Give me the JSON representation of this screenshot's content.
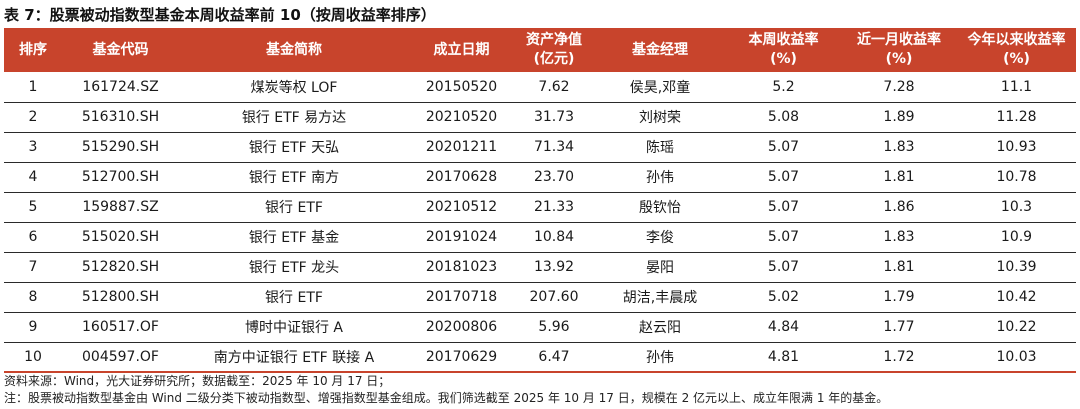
{
  "title": "表 7：股票被动指数型基金本周收益率前 10（按周收益率排序）",
  "table": {
    "headers": [
      [
        "排序"
      ],
      [
        "基金代码"
      ],
      [
        "基金简称"
      ],
      [
        "成立日期"
      ],
      [
        "资产净值",
        "(亿元)"
      ],
      [
        "基金经理"
      ],
      [
        "本周收益率",
        "(%)"
      ],
      [
        "近一月收益率",
        "(%)"
      ],
      [
        "今年以来收益率",
        "(%)"
      ]
    ],
    "rows": [
      [
        "1",
        "161724.SZ",
        "煤炭等权 LOF",
        "20150520",
        "7.62",
        "侯昊,邓童",
        "5.2",
        "7.28",
        "11.1"
      ],
      [
        "2",
        "516310.SH",
        "银行 ETF 易方达",
        "20210520",
        "31.73",
        "刘树荣",
        "5.08",
        "1.89",
        "11.28"
      ],
      [
        "3",
        "515290.SH",
        "银行 ETF 天弘",
        "20201211",
        "71.34",
        "陈瑶",
        "5.07",
        "1.83",
        "10.93"
      ],
      [
        "4",
        "512700.SH",
        "银行 ETF 南方",
        "20170628",
        "23.70",
        "孙伟",
        "5.07",
        "1.81",
        "10.78"
      ],
      [
        "5",
        "159887.SZ",
        "银行 ETF",
        "20210512",
        "21.33",
        "殷钦怡",
        "5.07",
        "1.86",
        "10.3"
      ],
      [
        "6",
        "515020.SH",
        "银行 ETF 基金",
        "20191024",
        "10.84",
        "李俊",
        "5.07",
        "1.83",
        "10.9"
      ],
      [
        "7",
        "512820.SH",
        "银行 ETF 龙头",
        "20181023",
        "13.92",
        "晏阳",
        "5.07",
        "1.81",
        "10.39"
      ],
      [
        "8",
        "512800.SH",
        "银行 ETF",
        "20170718",
        "207.60",
        "胡洁,丰晨成",
        "5.02",
        "1.79",
        "10.42"
      ],
      [
        "9",
        "160517.OF",
        "博时中证银行 A",
        "20200806",
        "5.96",
        "赵云阳",
        "4.84",
        "1.77",
        "10.22"
      ],
      [
        "10",
        "004597.OF",
        "南方中证银行 ETF 联接 A",
        "20170629",
        "6.47",
        "孙伟",
        "4.81",
        "1.72",
        "10.03"
      ]
    ]
  },
  "source_note": "资料来源：Wind，光大证券研究所；数据截至：2025 年 10 月 17 日；",
  "footnote": "注：股票被动指数型基金由 Wind 二级分类下被动指数型、增强指数型基金组成。我们筛选截至 2025 年 10 月 17 日，规模在 2 亿元以上、成立年限满 1 年的基金。",
  "colors": {
    "header_bg": "#c8442c",
    "header_text": "#ffffff"
  }
}
